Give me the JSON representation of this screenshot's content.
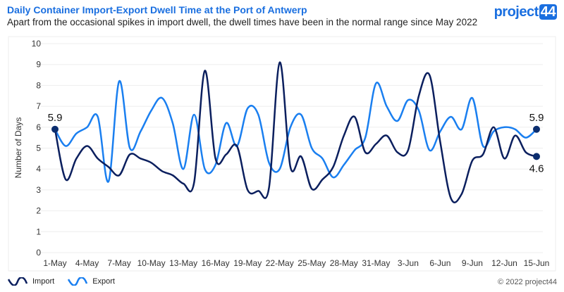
{
  "header": {
    "title": "Daily Container Import-Export Dwell Time at the Port of Antwerp",
    "subtitle": "Apart from the occasional spikes in import dwell, the dwell times have been in the normal range since May 2022",
    "logo_text": "project",
    "logo_badge": "44"
  },
  "footer": {
    "copyright": "© 2022 project44"
  },
  "chart_data": {
    "type": "line",
    "title": "Daily Container Import-Export Dwell Time at the Port of Antwerp",
    "ylabel": "Number of Days",
    "xlabel": "",
    "ylim": [
      0,
      10
    ],
    "yticks": [
      "0",
      "1",
      "2",
      "3",
      "4",
      "5",
      "6",
      "7",
      "8",
      "9",
      "10"
    ],
    "xtick_labels": [
      "1-May",
      "4-May",
      "7-May",
      "10-May",
      "13-May",
      "16-May",
      "19-May",
      "22-May",
      "25-May",
      "28-May",
      "31-May",
      "3-Jun",
      "6-Jun",
      "9-Jun",
      "12-Jun",
      "15-Jun"
    ],
    "x_start": "1-May",
    "x_end": "15-Jun",
    "grid": true,
    "legend": "bottom-left",
    "series": [
      {
        "name": "Import",
        "color": "#0b1f5e",
        "values": [
          5.9,
          3.5,
          4.5,
          5.1,
          4.5,
          4.1,
          3.7,
          4.7,
          4.5,
          4.3,
          3.9,
          3.7,
          3.3,
          3.35,
          8.7,
          4.5,
          4.7,
          5.1,
          3.0,
          2.95,
          3.1,
          9.1,
          4.1,
          4.6,
          3.05,
          3.5,
          4.1,
          5.6,
          6.5,
          4.8,
          5.2,
          5.6,
          4.8,
          4.9,
          7.5,
          8.5,
          5.3,
          2.6,
          2.8,
          4.4,
          4.7,
          6.0,
          4.5,
          5.6,
          4.8,
          4.6
        ]
      },
      {
        "name": "Export",
        "color": "#1a7ff0",
        "values": [
          5.9,
          5.1,
          5.7,
          6.0,
          6.5,
          3.4,
          8.2,
          5.0,
          5.8,
          6.8,
          7.4,
          6.2,
          4.0,
          6.6,
          4.0,
          4.2,
          6.2,
          5.1,
          6.9,
          6.6,
          4.3,
          4.0,
          6.0,
          6.6,
          5.0,
          4.5,
          3.6,
          4.2,
          4.9,
          5.5,
          8.1,
          7.0,
          6.3,
          7.3,
          6.8,
          4.9,
          5.8,
          6.5,
          5.9,
          7.4,
          5.1,
          5.8,
          6.0,
          5.9,
          5.5,
          5.9
        ]
      }
    ],
    "annotations": [
      {
        "label": "5.9",
        "series": "Import",
        "at": "1-May"
      },
      {
        "label": "5.9",
        "series": "Export",
        "at": "15-Jun"
      },
      {
        "label": "4.6",
        "series": "Import",
        "at": "15-Jun"
      }
    ]
  }
}
